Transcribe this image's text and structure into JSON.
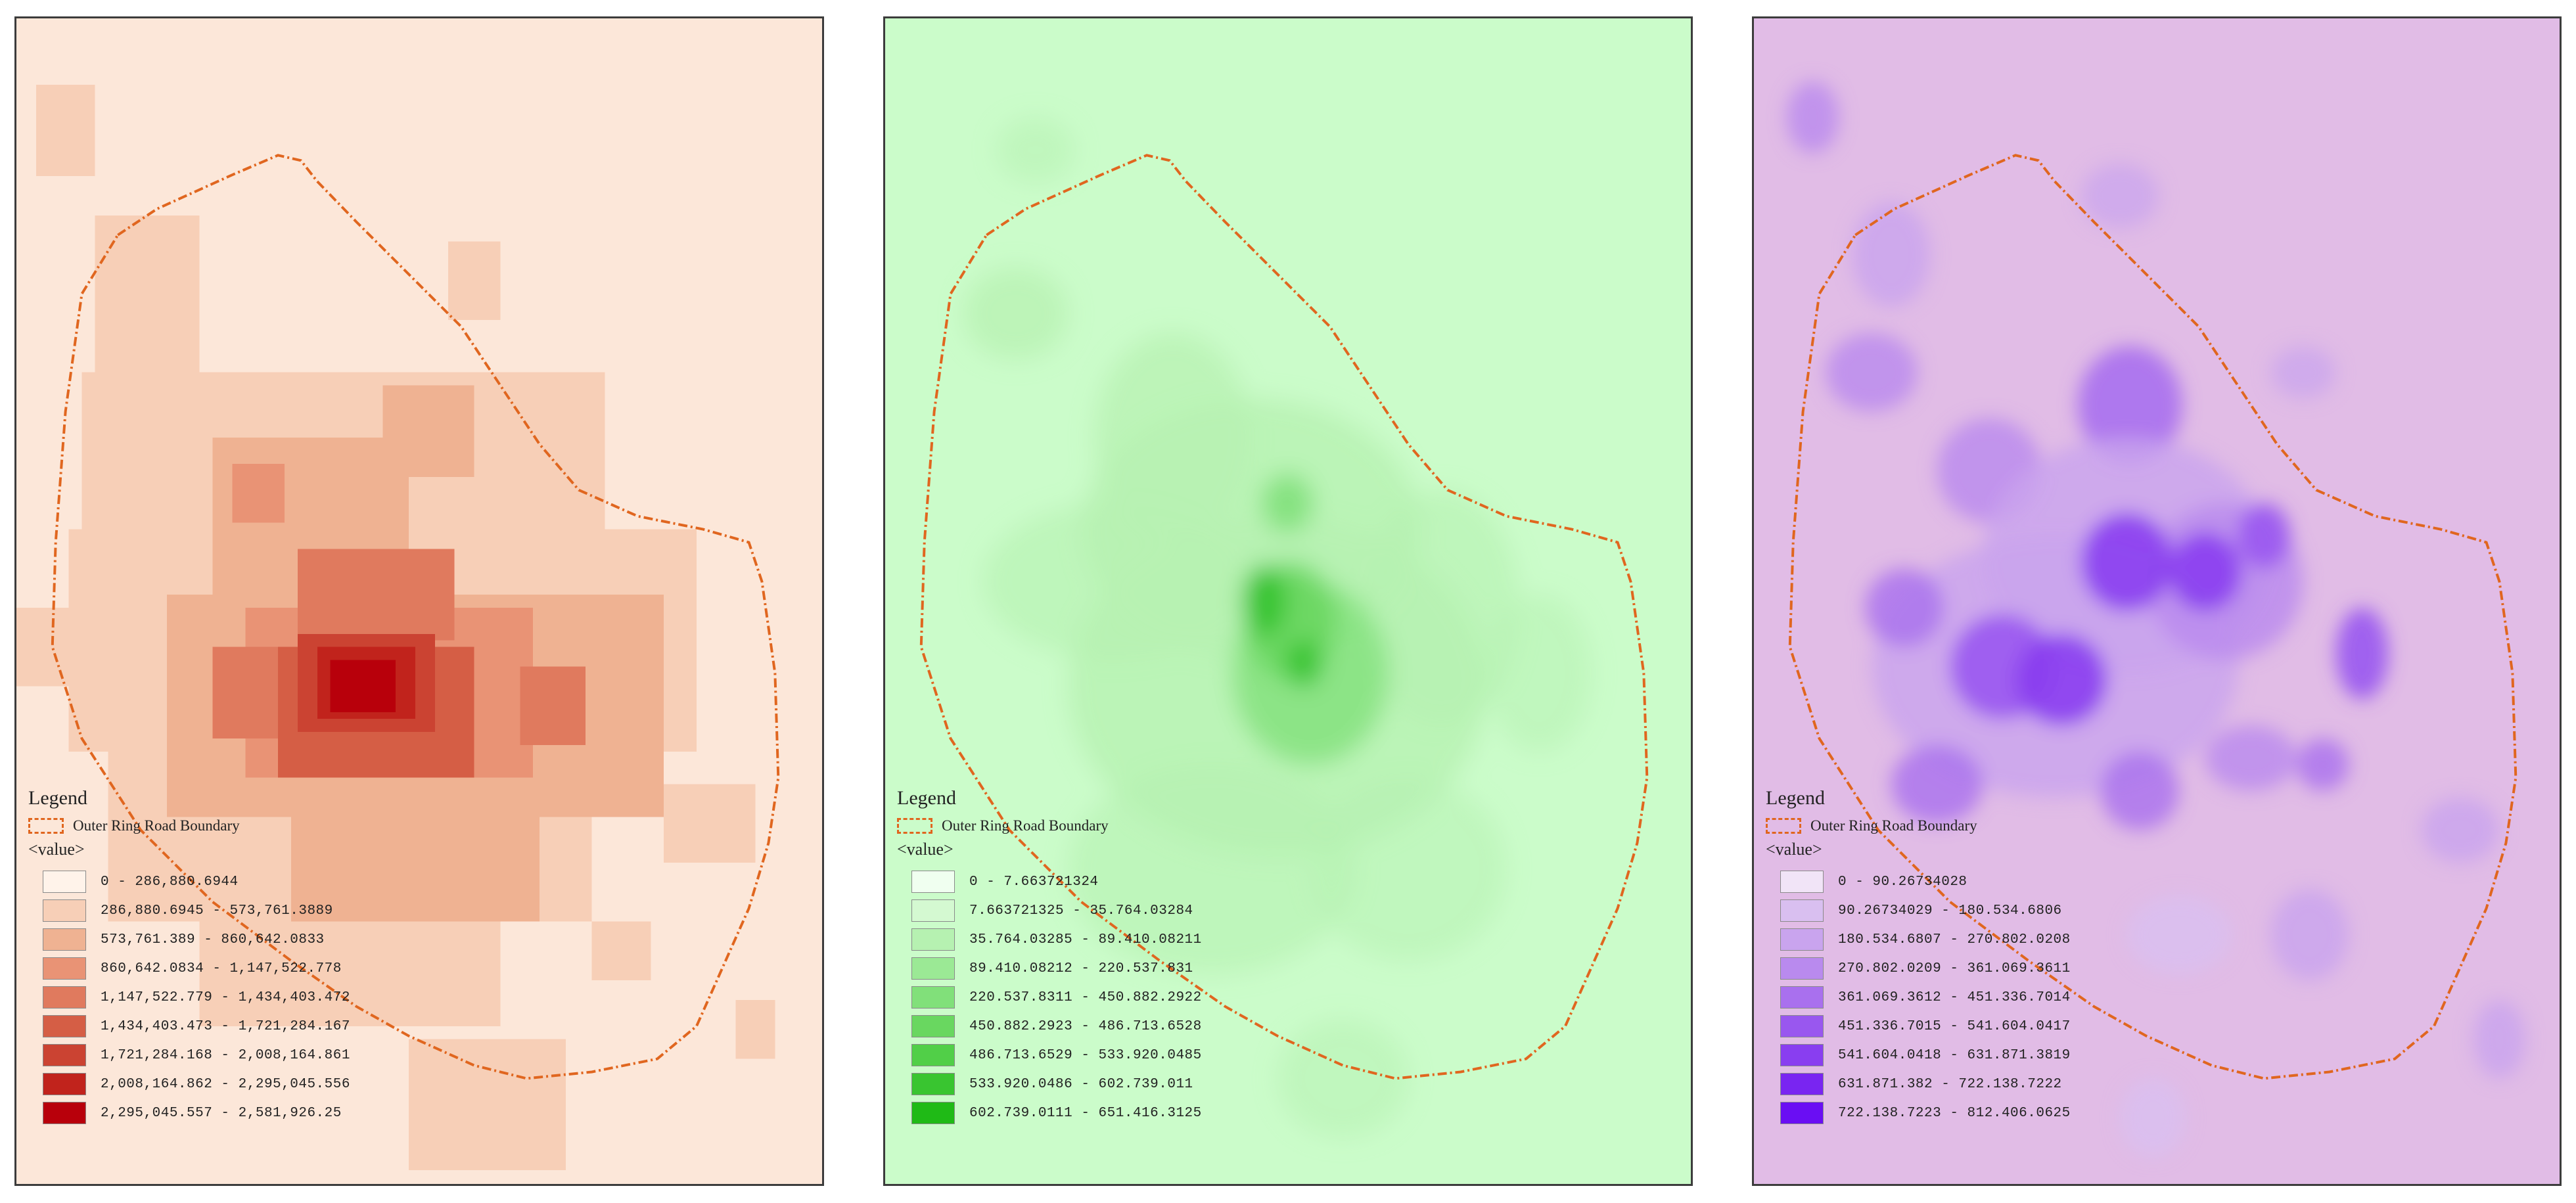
{
  "maps": [
    {
      "id": "red",
      "background": "#fce7d9",
      "legend": {
        "title": "Legend",
        "boundary_label": "Outer Ring Road Boundary",
        "value_label": "<value>",
        "classes": [
          {
            "range": "0 - 286,880.6944",
            "color": "#fff3ea"
          },
          {
            "range": "286,880.6945 - 573,761.3889",
            "color": "#f7cfb7"
          },
          {
            "range": "573,761.389 - 860,642.0833",
            "color": "#efb292"
          },
          {
            "range": "860,642.0834 - 1,147,522.778",
            "color": "#e99375"
          },
          {
            "range": "1,147,522.779 - 1,434,403.472",
            "color": "#e07a5e"
          },
          {
            "range": "1,434,403.473 - 1,721,284.167",
            "color": "#d55e45"
          },
          {
            "range": "1,721,284.168 - 2,008,164.861",
            "color": "#cb4332"
          },
          {
            "range": "2,008,164.862 - 2,295,045.556",
            "color": "#c1231c"
          },
          {
            "range": "2,295,045.557 - 2,581,926.25",
            "color": "#b8000b"
          }
        ]
      },
      "boundary_color": "#e0661f"
    },
    {
      "id": "green",
      "background": "#cbfcca",
      "legend": {
        "title": "Legend",
        "boundary_label": "Outer Ring Road Boundary",
        "value_label": "<value>",
        "classes": [
          {
            "range": "0 - 7.663721324",
            "color": "#f0fff0"
          },
          {
            "range": "7.663721325 - 35.764.03284",
            "color": "#d4f9d1"
          },
          {
            "range": "35.764.03285 - 89.410.08211",
            "color": "#b6f1b1"
          },
          {
            "range": "89.410.08212 - 220.537.831",
            "color": "#9be995"
          },
          {
            "range": "220.537.8311 - 450.882.2922",
            "color": "#81e07a"
          },
          {
            "range": "450.882.2923 - 486.713.6528",
            "color": "#69d760"
          },
          {
            "range": "486.713.6529 - 533.920.0485",
            "color": "#51cf48"
          },
          {
            "range": "533.920.0486 - 602.739.011",
            "color": "#39c530"
          },
          {
            "range": "602.739.0111 - 651.416.3125",
            "color": "#1fba16"
          }
        ]
      },
      "boundary_color": "#e0661f"
    },
    {
      "id": "purple",
      "background": "#e1bce6",
      "legend": {
        "title": "Legend",
        "boundary_label": "Outer Ring Road Boundary",
        "value_label": "<value>",
        "classes": [
          {
            "range": "0 - 90.26734028",
            "color": "#f1e4f7"
          },
          {
            "range": "90.26734029 - 180.534.6806",
            "color": "#d9bff0"
          },
          {
            "range": "180.534.6807 - 270.802.0208",
            "color": "#c9a4ee"
          },
          {
            "range": "270.802.0209 - 361.069.3611",
            "color": "#b98aee"
          },
          {
            "range": "361.069.3612 - 451.336.7014",
            "color": "#a970ee"
          },
          {
            "range": "451.336.7015 - 541.604.0417",
            "color": "#9957ef"
          },
          {
            "range": "541.604.0418 - 631.871.3819",
            "color": "#893ef0"
          },
          {
            "range": "631.871.382 - 722.138.7222",
            "color": "#7925f1"
          },
          {
            "range": "722.138.7223 - 812.406.0625",
            "color": "#6a0ef3"
          }
        ]
      },
      "boundary_color": "#e0661f"
    }
  ]
}
